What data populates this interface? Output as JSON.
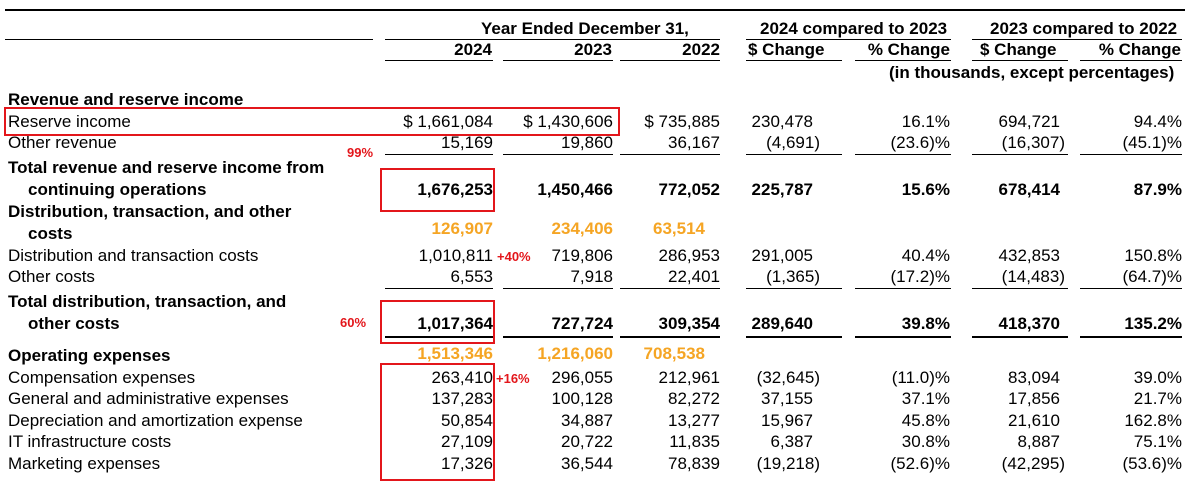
{
  "header": {
    "group1": "Year Ended December 31,",
    "group2": "2024 compared to 2023",
    "group3": "2023 compared to 2022",
    "col_2024": "2024",
    "col_2023": "2023",
    "col_2022": "2022",
    "chg1": "$ Change",
    "pct1": "% Change",
    "chg2": "$ Change",
    "pct2": "% Change",
    "units_note": "(in thousands, except percentages)"
  },
  "sections": {
    "revenue_title": "Revenue and reserve income",
    "distribution_title_line1": "Distribution, transaction, and other",
    "distribution_title_line2": "costs",
    "opex_title": "Operating expenses"
  },
  "rows": {
    "reserve_income": {
      "label": "Reserve income",
      "v2024": "$ 1,661,084",
      "v2023": "$ 1,430,606",
      "v2022": "$ 735,885",
      "chg1": "230,478",
      "pct1": "16.1%",
      "chg2": "694,721",
      "pct2": "94.4%"
    },
    "other_revenue": {
      "label": "Other revenue",
      "v2024": "15,169",
      "v2023": "19,860",
      "v2022": "36,167",
      "chg1": "(4,691)",
      "pct1": "(23.6)%",
      "chg2": "(16,307)",
      "pct2": "(45.1)%"
    },
    "total_revenue": {
      "label_line1": "Total revenue and reserve income from",
      "label_line2": "continuing operations",
      "v2024": "1,676,253",
      "v2023": "1,450,466",
      "v2022": "772,052",
      "chg1": "225,787",
      "pct1": "15.6%",
      "chg2": "678,414",
      "pct2": "87.9%"
    },
    "distribution_costs": {
      "label": "Distribution and transaction costs",
      "v2024": "1,010,811",
      "v2023": "719,806",
      "v2022": "286,953",
      "chg1": "291,005",
      "pct1": "40.4%",
      "chg2": "432,853",
      "pct2": "150.8%"
    },
    "other_costs": {
      "label": "Other costs",
      "v2024": "6,553",
      "v2023": "7,918",
      "v2022": "22,401",
      "chg1": "(1,365)",
      "pct1": "(17.2)%",
      "chg2": "(14,483)",
      "pct2": "(64.7)%"
    },
    "total_costs": {
      "label_line1": "Total distribution, transaction, and",
      "label_line2": "other costs",
      "v2024": "1,017,364",
      "v2023": "727,724",
      "v2022": "309,354",
      "chg1": "289,640",
      "pct1": "39.8%",
      "chg2": "418,370",
      "pct2": "135.2%"
    },
    "compensation": {
      "label": "Compensation expenses",
      "v2024": "263,410",
      "v2023": "296,055",
      "v2022": "212,961",
      "chg1": "(32,645)",
      "pct1": "(11.0)%",
      "chg2": "83,094",
      "pct2": "39.0%"
    },
    "gna": {
      "label": "General and administrative expenses",
      "v2024": "137,283",
      "v2023": "100,128",
      "v2022": "82,272",
      "chg1": "37,155",
      "pct1": "37.1%",
      "chg2": "17,856",
      "pct2": "21.7%"
    },
    "depreciation": {
      "label": "Depreciation and amortization expense",
      "v2024": "50,854",
      "v2023": "34,887",
      "v2022": "13,277",
      "chg1": "15,967",
      "pct1": "45.8%",
      "chg2": "21,610",
      "pct2": "162.8%"
    },
    "it_infra": {
      "label": "IT infrastructure costs",
      "v2024": "27,109",
      "v2023": "20,722",
      "v2022": "11,835",
      "chg1": "6,387",
      "pct1": "30.8%",
      "chg2": "8,887",
      "pct2": "75.1%"
    },
    "marketing": {
      "label": "Marketing expenses",
      "v2024": "17,326",
      "v2023": "36,544",
      "v2022": "78,839",
      "chg1": "(19,218)",
      "pct1": "(52.6)%",
      "chg2": "(42,295)",
      "pct2": "(53.6)%"
    }
  },
  "annotations": {
    "gross_margin": "99%",
    "cost_ratio": "60%",
    "dist_growth": "+40%",
    "comp_growth": "+16%",
    "dist_sum_2024": "126,907",
    "dist_sum_2023": "234,406",
    "dist_sum_2022": "63,514",
    "opex_sum_2024": "1,513,346",
    "opex_sum_2023": "1,216,060",
    "opex_sum_2022": "708,538"
  },
  "colors": {
    "annotation_red": "#e3161b",
    "highlight_orange": "#f5a524"
  }
}
